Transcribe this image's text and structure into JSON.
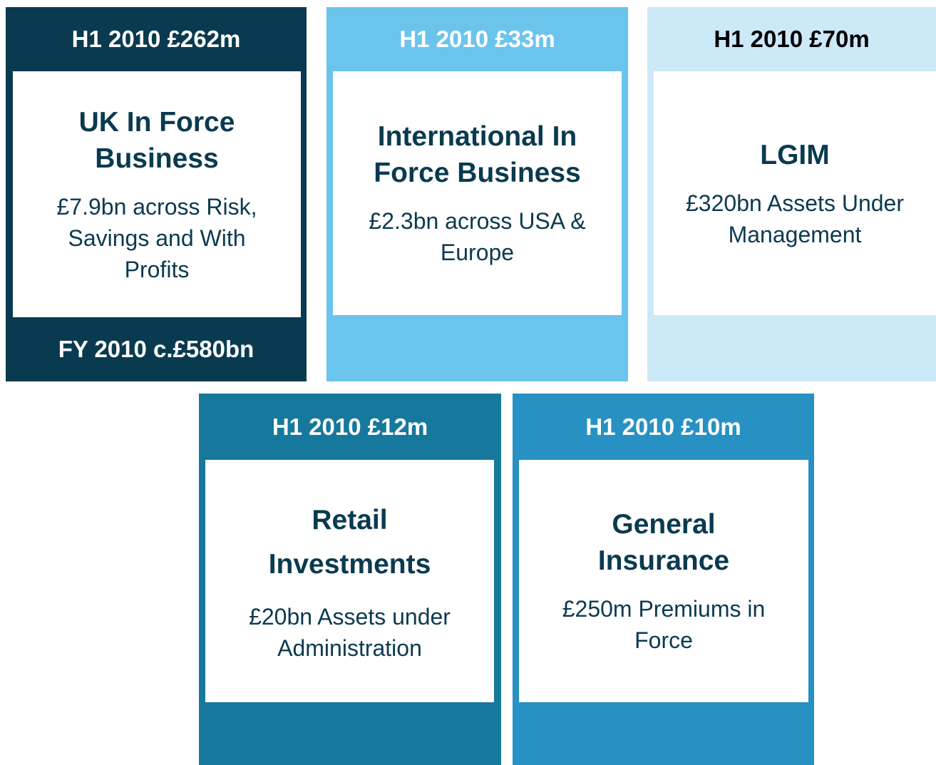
{
  "boxes": [
    {
      "header": "H1 2010 £262m",
      "title": [
        "UK In Force",
        "Business"
      ],
      "description": [
        "£7.9bn across Risk,",
        "Savings and With",
        "Profits"
      ],
      "footer": "FY 2010 c.£580bn"
    },
    {
      "header": "H1 2010 £33m",
      "title": [
        "International In",
        "Force Business"
      ],
      "description": [
        "£2.3bn across USA &",
        "Europe"
      ]
    },
    {
      "header": "H1 2010 £70m",
      "title": [
        "LGIM"
      ],
      "description": [
        "£320bn Assets Under",
        "Management"
      ]
    },
    {
      "header": "H1 2010 £12m",
      "title": [
        "Retail",
        "Investments"
      ],
      "description": [
        "£20bn Assets under",
        "Administration"
      ]
    },
    {
      "header": "H1 2010 £10m",
      "title": [
        "General",
        "Insurance"
      ],
      "description": [
        "£250m Premiums in",
        "Force"
      ]
    }
  ]
}
